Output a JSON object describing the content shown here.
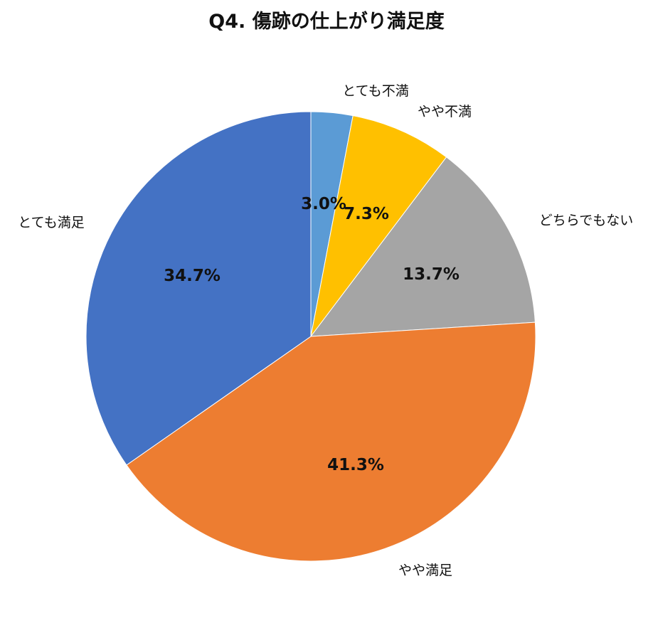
{
  "chart_data": {
    "type": "pie",
    "title": "Q4. 傷跡の仕上がり満足度",
    "direction": "clockwise",
    "start_angle": "12 o'clock",
    "slices": [
      {
        "name": "とても不満",
        "value": 3.0,
        "label": "3.0%",
        "color": "#5B9BD5"
      },
      {
        "name": "やや不満",
        "value": 7.3,
        "label": "7.3%",
        "color": "#FFC000"
      },
      {
        "name": "どちらでもない",
        "value": 13.7,
        "label": "13.7%",
        "color": "#A5A5A5"
      },
      {
        "name": "やや満足",
        "value": 41.3,
        "label": "41.3%",
        "color": "#ED7D31"
      },
      {
        "name": "とても満足",
        "value": 34.7,
        "label": "34.7%",
        "color": "#4472C4"
      }
    ],
    "legend": "none"
  }
}
